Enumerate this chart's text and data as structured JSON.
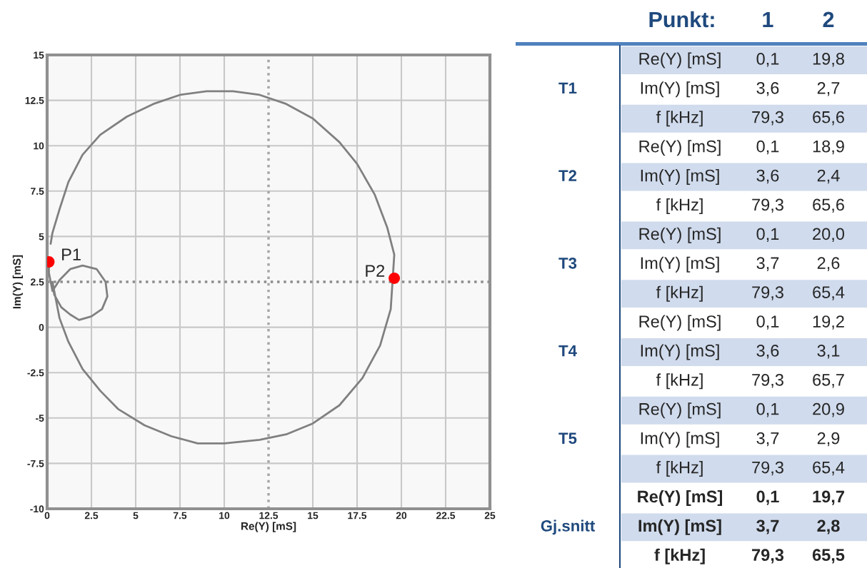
{
  "chart_data": [
    {
      "type": "line",
      "xlabel": "Re(Y) [mS]",
      "ylabel": "Im(Y) [mS]",
      "xlim": [
        0,
        25
      ],
      "ylim": [
        -10,
        15
      ],
      "xticks": [
        0,
        2.5,
        5,
        7.5,
        10,
        12.5,
        15,
        17.5,
        20,
        22.5,
        25
      ],
      "yticks": [
        -10,
        -7.5,
        -5,
        -2.5,
        0,
        2.5,
        5,
        7.5,
        10,
        12.5,
        15
      ],
      "grid": true,
      "series": [
        {
          "type": "line",
          "color": "#808080",
          "marker": "none",
          "x": [
            0.2,
            0.3,
            0.7,
            1.2,
            2,
            3,
            4.5,
            6,
            7.5,
            9,
            10.5,
            12,
            13.5,
            15,
            16.5,
            17.5,
            18.5,
            19.2,
            19.6,
            19.4,
            18.8,
            17.8,
            16.5,
            15,
            13.5,
            12,
            10,
            8.5,
            7,
            5.5,
            4,
            3,
            2,
            1.2,
            0.7,
            0.5,
            0.3,
            0.4,
            0.8,
            1.3,
            1.8,
            2.5,
            3.1,
            3.4,
            3.3,
            2.8,
            2,
            1.3,
            0.7,
            0.3,
            0.1,
            0.1
          ],
          "values": [
            4.6,
            5.2,
            6.5,
            8,
            9.5,
            10.6,
            11.6,
            12.3,
            12.8,
            13,
            13,
            12.8,
            12.3,
            11.5,
            10.2,
            9,
            7.3,
            5.5,
            4,
            1,
            -1,
            -2.8,
            -4.3,
            -5.3,
            -5.9,
            -6.2,
            -6.4,
            -6.4,
            -6,
            -5.4,
            -4.5,
            -3.5,
            -2.3,
            -0.8,
            0.5,
            1.5,
            2.5,
            1.8,
            1.1,
            0.7,
            0.4,
            0.6,
            1,
            1.7,
            2.5,
            3.2,
            3.4,
            3.2,
            2.6,
            2,
            3,
            3.6
          ]
        },
        {
          "type": "scatter",
          "color": "#ff0000",
          "marker": "circle",
          "x": [
            0.1,
            19.6
          ],
          "values": [
            3.6,
            2.7
          ]
        }
      ],
      "ref_lines": [
        {
          "axis": "y",
          "value": 2.5,
          "line_style": "dotted",
          "color": "#8c8c8c"
        },
        {
          "axis": "x",
          "value": 12.5,
          "line_style": "dotted",
          "color": "#a6a6a6"
        }
      ],
      "annotations": [
        {
          "text": "P1",
          "x": 0.1,
          "y": 3.6
        },
        {
          "text": "P2",
          "x": 19.6,
          "y": 2.7
        }
      ]
    },
    {
      "type": "other",
      "title": "Punkt:",
      "categories": [
        "1",
        "2"
      ],
      "y_categories": [
        "T1",
        "T2",
        "T3",
        "T4",
        "T5",
        "Gj.snitt"
      ],
      "y2_categories": [
        "Re(Y) [mS]",
        "Im(Y) [mS]",
        "f [kHz]",
        "Re(Y) [mS]",
        "Im(Y) [mS]",
        "f [kHz]",
        "Re(Y) [mS]",
        "Im(Y) [mS]",
        "f [kHz]",
        "Re(Y) [mS]",
        "Im(Y) [mS]",
        "f [kHz]",
        "Re(Y) [mS]",
        "Im(Y) [mS]",
        "f [kHz]",
        "Re(Y) [mS]",
        "Im(Y) [mS]",
        "f [kHz]"
      ],
      "cell_labels": [
        [
          "0,1",
          "19,8"
        ],
        [
          "3,6",
          "2,7"
        ],
        [
          "79,3",
          "65,6"
        ],
        [
          "0,1",
          "18,9"
        ],
        [
          "3,6",
          "2,4"
        ],
        [
          "79,3",
          "65,6"
        ],
        [
          "0,1",
          "20,0"
        ],
        [
          "3,7",
          "2,6"
        ],
        [
          "79,3",
          "65,4"
        ],
        [
          "0,1",
          "19,2"
        ],
        [
          "3,6",
          "3,1"
        ],
        [
          "79,3",
          "65,7"
        ],
        [
          "0,1",
          "20,9"
        ],
        [
          "3,7",
          "2,9"
        ],
        [
          "79,3",
          "65,4"
        ],
        [
          "0,1",
          "19,7"
        ],
        [
          "3,7",
          "2,8"
        ],
        [
          "79,3",
          "65,5"
        ]
      ]
    }
  ]
}
